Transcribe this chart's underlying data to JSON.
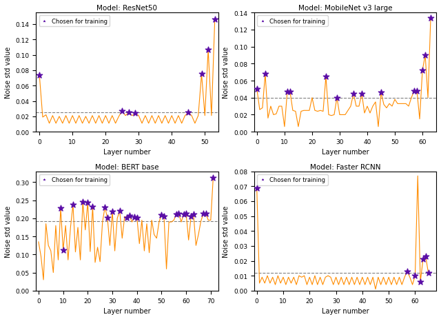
{
  "resnet50": {
    "title": "Model: ResNet50",
    "xlabel": "Layer number",
    "ylabel": "Noise std value",
    "threshold": 0.025,
    "ylim": [
      0.0,
      0.155
    ],
    "xlim": [
      -1,
      54
    ],
    "xticks": [
      0,
      10,
      20,
      30,
      40,
      50
    ],
    "chosen_indices": [
      0,
      25,
      27,
      29,
      45,
      49,
      51,
      53
    ],
    "line_color": "#FF8C00",
    "star_color": "#5B0EA6",
    "vals": [
      0.074,
      0.019,
      0.022,
      0.011,
      0.021,
      0.011,
      0.02,
      0.011,
      0.021,
      0.011,
      0.021,
      0.011,
      0.021,
      0.011,
      0.02,
      0.011,
      0.021,
      0.011,
      0.021,
      0.011,
      0.021,
      0.011,
      0.021,
      0.011,
      0.02,
      0.027,
      0.021,
      0.025,
      0.021,
      0.024,
      0.021,
      0.011,
      0.021,
      0.011,
      0.021,
      0.011,
      0.021,
      0.011,
      0.021,
      0.011,
      0.021,
      0.011,
      0.021,
      0.011,
      0.021,
      0.025,
      0.021,
      0.011,
      0.021,
      0.075,
      0.021,
      0.107,
      0.021,
      0.146
    ]
  },
  "mobilenet": {
    "title": "Model: MobileNet v3 large",
    "xlabel": "Layer number",
    "ylabel": "Noise std value",
    "threshold": 0.04,
    "ylim": [
      0.0,
      0.14
    ],
    "xlim": [
      -1,
      65
    ],
    "xticks": [
      0,
      10,
      20,
      30,
      40,
      50,
      60
    ],
    "chosen_indices": [
      0,
      3,
      11,
      12,
      25,
      29,
      35,
      38,
      45,
      57,
      58,
      60,
      61,
      63
    ],
    "line_color": "#FF8C00",
    "star_color": "#5B0EA6",
    "vals": [
      0.05,
      0.026,
      0.028,
      0.068,
      0.016,
      0.03,
      0.02,
      0.021,
      0.03,
      0.03,
      0.006,
      0.047,
      0.047,
      0.025,
      0.024,
      0.006,
      0.024,
      0.025,
      0.025,
      0.025,
      0.04,
      0.025,
      0.024,
      0.025,
      0.024,
      0.065,
      0.02,
      0.019,
      0.02,
      0.04,
      0.02,
      0.02,
      0.02,
      0.025,
      0.03,
      0.045,
      0.03,
      0.03,
      0.045,
      0.022,
      0.03,
      0.022,
      0.03,
      0.035,
      0.006,
      0.046,
      0.032,
      0.028,
      0.033,
      0.03,
      0.038,
      0.033,
      0.033,
      0.033,
      0.033,
      0.03,
      0.04,
      0.048,
      0.048,
      0.015,
      0.072,
      0.09,
      0.04,
      0.134
    ]
  },
  "bert": {
    "title": "Model: BERT base",
    "xlabel": "Layer number",
    "ylabel": "Noise std value",
    "threshold": 0.192,
    "ylim": [
      0.0,
      0.33
    ],
    "xlim": [
      -1,
      73
    ],
    "xticks": [
      0,
      10,
      20,
      30,
      40,
      50,
      60,
      70
    ],
    "chosen_indices": [
      9,
      10,
      14,
      18,
      20,
      22,
      27,
      28,
      30,
      33,
      36,
      37,
      39,
      40,
      50,
      51,
      56,
      57,
      59,
      60,
      62,
      63,
      67,
      68,
      71
    ],
    "line_color": "#FF8C00",
    "star_color": "#5B0EA6",
    "vals": [
      0.135,
      0.095,
      0.03,
      0.185,
      0.125,
      0.11,
      0.05,
      0.18,
      0.085,
      0.228,
      0.113,
      0.18,
      0.085,
      0.175,
      0.238,
      0.107,
      0.175,
      0.085,
      0.246,
      0.168,
      0.244,
      0.108,
      0.232,
      0.078,
      0.12,
      0.08,
      0.19,
      0.231,
      0.201,
      0.125,
      0.219,
      0.11,
      0.2,
      0.221,
      0.145,
      0.205,
      0.202,
      0.207,
      0.19,
      0.204,
      0.202,
      0.13,
      0.195,
      0.11,
      0.185,
      0.105,
      0.195,
      0.155,
      0.145,
      0.19,
      0.21,
      0.205,
      0.06,
      0.19,
      0.19,
      0.195,
      0.211,
      0.213,
      0.19,
      0.211,
      0.213,
      0.14,
      0.205,
      0.211,
      0.125,
      0.155,
      0.192,
      0.213,
      0.213,
      0.195,
      0.195,
      0.313
    ]
  },
  "faster_rcnn": {
    "title": "Model: Faster RCNN",
    "xlabel": "Layer number",
    "ylabel": "Noise std value",
    "threshold": 0.012,
    "ylim": [
      0.0,
      0.08
    ],
    "xlim": [
      -1,
      68
    ],
    "xticks": [
      0,
      10,
      20,
      30,
      40,
      50,
      60
    ],
    "chosen_indices": [
      0,
      57,
      60,
      62,
      63,
      64,
      65
    ],
    "line_color": "#FF8C00",
    "star_color": "#5B0EA6",
    "vals": [
      0.069,
      0.005,
      0.009,
      0.005,
      0.01,
      0.005,
      0.009,
      0.004,
      0.01,
      0.005,
      0.009,
      0.004,
      0.009,
      0.005,
      0.009,
      0.004,
      0.01,
      0.009,
      0.01,
      0.004,
      0.009,
      0.004,
      0.01,
      0.004,
      0.009,
      0.004,
      0.009,
      0.01,
      0.009,
      0.004,
      0.009,
      0.004,
      0.009,
      0.004,
      0.009,
      0.004,
      0.009,
      0.004,
      0.009,
      0.004,
      0.009,
      0.004,
      0.009,
      0.004,
      0.009,
      0.001,
      0.009,
      0.004,
      0.009,
      0.004,
      0.009,
      0.004,
      0.009,
      0.004,
      0.009,
      0.004,
      0.009,
      0.013,
      0.009,
      0.004,
      0.01,
      0.077,
      0.006,
      0.021,
      0.023,
      0.012,
      0.012
    ]
  },
  "legend_label": "Chosen for training",
  "line_width": 0.8,
  "star_size": 40,
  "background_color": "#ffffff"
}
